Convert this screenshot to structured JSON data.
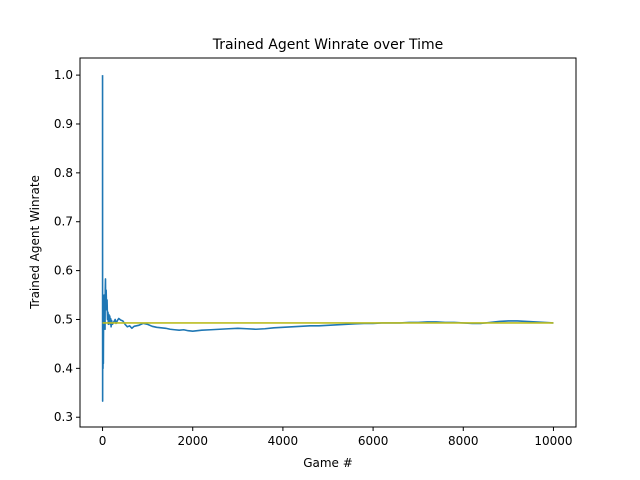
{
  "chart_data": {
    "type": "line",
    "title": "Trained Agent Winrate over Time",
    "xlabel": "Game #",
    "ylabel": "Trained Agent Winrate",
    "xlim": [
      -500,
      10500
    ],
    "ylim": [
      0.28,
      1.035
    ],
    "xticks": [
      0,
      2000,
      4000,
      6000,
      8000,
      10000
    ],
    "yticks": [
      0.3,
      0.4,
      0.5,
      0.6,
      0.7,
      0.8,
      0.9,
      1.0
    ],
    "xtick_labels": [
      "0",
      "2000",
      "4000",
      "6000",
      "8000",
      "10000"
    ],
    "ytick_labels": [
      "0.3",
      "0.4",
      "0.5",
      "0.6",
      "0.7",
      "0.8",
      "0.9",
      "1.0"
    ],
    "grid": false,
    "legend": "none",
    "series": [
      {
        "color": "#1f77b4",
        "x": [
          0,
          1,
          2,
          3,
          4,
          5,
          6,
          7,
          8,
          10,
          12,
          14,
          16,
          18,
          20,
          25,
          30,
          35,
          40,
          45,
          50,
          55,
          60,
          65,
          70,
          80,
          90,
          100,
          110,
          120,
          130,
          140,
          150,
          160,
          170,
          180,
          190,
          200,
          220,
          250,
          280,
          300,
          330,
          360,
          400,
          450,
          500,
          550,
          600,
          650,
          700,
          800,
          900,
          1000,
          1100,
          1200,
          1300,
          1400,
          1500,
          1600,
          1700,
          1800,
          1900,
          2000,
          2200,
          2400,
          2600,
          2800,
          3000,
          3200,
          3400,
          3600,
          3800,
          4000,
          4200,
          4400,
          4600,
          4800,
          5000,
          5200,
          5400,
          5600,
          5800,
          6000,
          6200,
          6400,
          6600,
          6800,
          7000,
          7200,
          7400,
          7600,
          7800,
          8000,
          8200,
          8400,
          8600,
          8800,
          9000,
          9200,
          9400,
          9600,
          9800,
          10000
        ],
        "values": [
          1.0,
          0.5,
          0.333,
          0.5,
          0.4,
          0.5,
          0.429,
          0.5,
          0.444,
          0.4,
          0.5,
          0.43,
          0.47,
          0.41,
          0.45,
          0.52,
          0.49,
          0.55,
          0.5,
          0.53,
          0.51,
          0.48,
          0.56,
          0.583,
          0.52,
          0.56,
          0.52,
          0.54,
          0.5,
          0.515,
          0.49,
          0.51,
          0.495,
          0.507,
          0.49,
          0.502,
          0.485,
          0.498,
          0.49,
          0.495,
          0.5,
          0.492,
          0.498,
          0.502,
          0.499,
          0.497,
          0.49,
          0.485,
          0.487,
          0.482,
          0.486,
          0.488,
          0.492,
          0.49,
          0.486,
          0.484,
          0.483,
          0.482,
          0.48,
          0.479,
          0.478,
          0.479,
          0.477,
          0.476,
          0.478,
          0.479,
          0.48,
          0.481,
          0.482,
          0.481,
          0.48,
          0.481,
          0.483,
          0.484,
          0.485,
          0.486,
          0.487,
          0.487,
          0.488,
          0.489,
          0.49,
          0.491,
          0.492,
          0.492,
          0.493,
          0.493,
          0.493,
          0.494,
          0.494,
          0.495,
          0.495,
          0.494,
          0.494,
          0.493,
          0.492,
          0.492,
          0.494,
          0.496,
          0.497,
          0.497,
          0.496,
          0.495,
          0.494,
          0.493
        ]
      },
      {
        "color": "#bcbd22",
        "x": [
          0,
          10000
        ],
        "values": [
          0.493,
          0.493
        ]
      }
    ]
  }
}
